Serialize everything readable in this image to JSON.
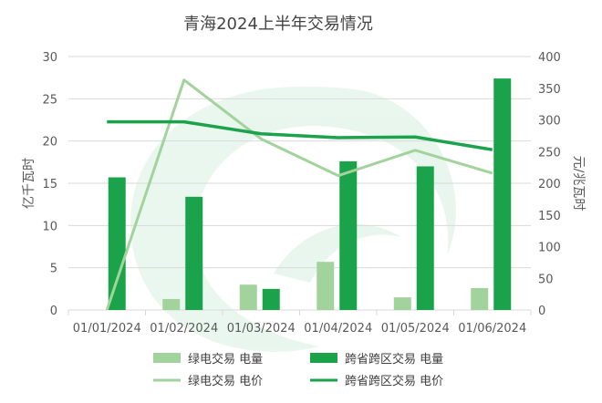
{
  "chart_data": {
    "type": "bar",
    "title": "青海2024上半年交易情况",
    "categories": [
      "01/01/2024",
      "01/02/2024",
      "01/03/2024",
      "01/04/2024",
      "01/05/2024",
      "01/06/2024"
    ],
    "ylabel_left": "亿千瓦时",
    "ylabel_right": "元/兆瓦时",
    "ylim_left": [
      0,
      30
    ],
    "ylim_right": [
      0,
      400
    ],
    "yticks_left": [
      "0",
      "5",
      "10",
      "15",
      "20",
      "25",
      "30"
    ],
    "yticks_right": [
      "0",
      "50",
      "100",
      "150",
      "200",
      "250",
      "300",
      "350",
      "400"
    ],
    "grid": true,
    "legend_position": "bottom",
    "series": [
      {
        "name": "绿电交易 电量",
        "type": "bar",
        "axis": "left",
        "color": "#a3d39c",
        "values": [
          0,
          1.3,
          3.0,
          5.7,
          1.5,
          2.6
        ]
      },
      {
        "name": "跨省跨区交易 电量",
        "type": "bar",
        "axis": "left",
        "color": "#1aa34a",
        "values": [
          15.7,
          13.4,
          2.5,
          17.6,
          17.0,
          27.4
        ]
      },
      {
        "name": "绿电交易 电价",
        "type": "line",
        "axis": "right",
        "color": "#a3d39c",
        "values": [
          0,
          363,
          270,
          212,
          252,
          216
        ]
      },
      {
        "name": "跨省跨区交易 电价",
        "type": "line",
        "axis": "right",
        "color": "#1aa34a",
        "values": [
          297,
          297,
          278,
          272,
          273,
          253
        ]
      }
    ]
  }
}
